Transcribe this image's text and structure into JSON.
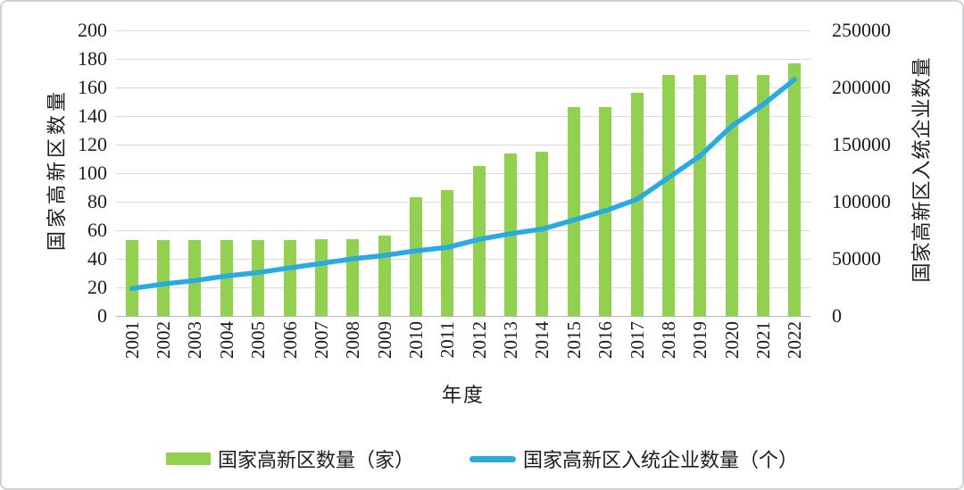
{
  "chart_data": {
    "type": "combo",
    "categories": [
      "2001",
      "2002",
      "2003",
      "2004",
      "2005",
      "2006",
      "2007",
      "2008",
      "2009",
      "2010",
      "2011",
      "2012",
      "2013",
      "2014",
      "2015",
      "2016",
      "2017",
      "2018",
      "2019",
      "2020",
      "2021",
      "2022"
    ],
    "series": [
      {
        "name": "国家高新区数量（家）",
        "type": "bar",
        "axis": "left",
        "values": [
          53,
          53,
          53,
          53,
          53,
          53,
          54,
          54,
          56,
          83,
          88,
          105,
          114,
          115,
          146,
          146,
          156,
          169,
          169,
          169,
          169,
          177
        ]
      },
      {
        "name": "国家高新区入统企业数量（个）",
        "type": "line",
        "axis": "right",
        "values": [
          24000,
          28000,
          31000,
          35000,
          38000,
          42000,
          46000,
          50000,
          53000,
          57000,
          60000,
          67000,
          72000,
          76000,
          84000,
          92000,
          102000,
          121000,
          140000,
          166000,
          185000,
          207000
        ]
      }
    ],
    "title": "",
    "xlabel": "年度",
    "ylabel_left": "国家高新区数量",
    "ylabel_right": "国家高新区入统企业数量",
    "y_left_axis": {
      "min": 0,
      "max": 200,
      "step": 20
    },
    "y_right_axis": {
      "min": 0,
      "max": 250000,
      "step": 50000
    },
    "y_left_ticks": [
      "0",
      "20",
      "40",
      "60",
      "80",
      "100",
      "120",
      "140",
      "160",
      "180",
      "200"
    ],
    "y_right_ticks": [
      "0",
      "50000",
      "100000",
      "150000",
      "200000",
      "250000"
    ],
    "legend": [
      "国家高新区数量（家）",
      "国家高新区入统企业数量（个）"
    ],
    "legend_position": "bottom",
    "grid": true
  },
  "colors": {
    "bar": "#92d050",
    "line": "#29abe2",
    "grid": "#d9d9d9",
    "axis": "#b9bcbe",
    "text": "#1c1c1c"
  }
}
